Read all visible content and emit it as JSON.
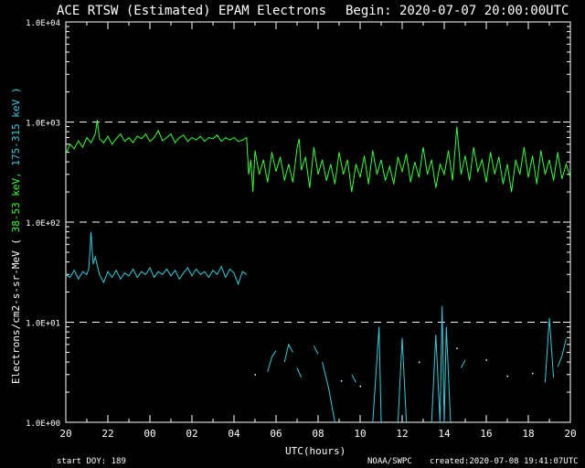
{
  "chart_data": {
    "type": "line",
    "title": "ACE RTSW (Estimated) EPAM Electrons",
    "begin_label": "Begin: 2020-07-07 20:00:00UTC",
    "ylabel": {
      "prefix": "Electrons/cm2-s-sr-MeV ( ",
      "series1": "38-53 keV,",
      "series2": "175-315 keV )"
    },
    "xlabel": "UTC(hours)",
    "x_ticks": [
      "20",
      "22",
      "00",
      "02",
      "04",
      "06",
      "08",
      "10",
      "12",
      "14",
      "16",
      "18",
      "20"
    ],
    "y_ticks": [
      "1.0E+00",
      "1.0E+01",
      "1.0E+02",
      "1.0E+03",
      "1.0E+04"
    ],
    "y_scale": "log",
    "ylim": [
      1,
      10000
    ],
    "xlim_hours": [
      0,
      24
    ],
    "dashed_lines": [
      10,
      100,
      1000
    ],
    "footer": {
      "start_doy": "start DOY:  189",
      "source": "NOAA/SWPC",
      "created": "created:2020-07-08 19:41:07UTC"
    },
    "series": [
      {
        "color": "#33ff33",
        "values": [
          [
            0.0,
            480
          ],
          [
            0.2,
            600
          ],
          [
            0.4,
            540
          ],
          [
            0.6,
            650
          ],
          [
            0.8,
            560
          ],
          [
            1.0,
            700
          ],
          [
            1.2,
            620
          ],
          [
            1.4,
            760
          ],
          [
            1.5,
            1050
          ],
          [
            1.6,
            680
          ],
          [
            1.8,
            620
          ],
          [
            2.0,
            720
          ],
          [
            2.2,
            600
          ],
          [
            2.4,
            680
          ],
          [
            2.6,
            760
          ],
          [
            2.8,
            640
          ],
          [
            3.0,
            700
          ],
          [
            3.2,
            620
          ],
          [
            3.4,
            720
          ],
          [
            3.6,
            680
          ],
          [
            3.8,
            760
          ],
          [
            4.0,
            640
          ],
          [
            4.2,
            700
          ],
          [
            4.4,
            820
          ],
          [
            4.6,
            650
          ],
          [
            4.8,
            700
          ],
          [
            5.0,
            760
          ],
          [
            5.2,
            620
          ],
          [
            5.4,
            700
          ],
          [
            5.6,
            740
          ],
          [
            5.8,
            640
          ],
          [
            6.0,
            700
          ],
          [
            6.2,
            660
          ],
          [
            6.4,
            720
          ],
          [
            6.6,
            640
          ],
          [
            6.8,
            700
          ],
          [
            7.0,
            680
          ],
          [
            7.2,
            740
          ],
          [
            7.4,
            640
          ],
          [
            7.6,
            700
          ],
          [
            7.8,
            660
          ],
          [
            8.0,
            700
          ],
          [
            8.2,
            640
          ],
          [
            8.4,
            660
          ],
          [
            8.6,
            700
          ],
          [
            8.7,
            300
          ],
          [
            8.8,
            420
          ],
          [
            8.9,
            200
          ],
          [
            9.0,
            520
          ],
          [
            9.2,
            300
          ],
          [
            9.4,
            420
          ],
          [
            9.6,
            250
          ],
          [
            9.8,
            500
          ],
          [
            10.0,
            320
          ],
          [
            10.2,
            450
          ],
          [
            10.4,
            260
          ],
          [
            10.6,
            380
          ],
          [
            10.8,
            250
          ],
          [
            11.0,
            550
          ],
          [
            11.1,
            680
          ],
          [
            11.2,
            330
          ],
          [
            11.4,
            450
          ],
          [
            11.6,
            220
          ],
          [
            11.8,
            560
          ],
          [
            12.0,
            300
          ],
          [
            12.2,
            420
          ],
          [
            12.4,
            260
          ],
          [
            12.6,
            380
          ],
          [
            12.8,
            240
          ],
          [
            13.0,
            500
          ],
          [
            13.2,
            300
          ],
          [
            13.4,
            420
          ],
          [
            13.6,
            200
          ],
          [
            13.8,
            380
          ],
          [
            14.0,
            280
          ],
          [
            14.2,
            460
          ],
          [
            14.4,
            240
          ],
          [
            14.6,
            520
          ],
          [
            14.8,
            300
          ],
          [
            15.0,
            420
          ],
          [
            15.2,
            260
          ],
          [
            15.4,
            360
          ],
          [
            15.6,
            240
          ],
          [
            15.8,
            450
          ],
          [
            16.0,
            320
          ],
          [
            16.2,
            480
          ],
          [
            16.4,
            250
          ],
          [
            16.6,
            400
          ],
          [
            16.8,
            280
          ],
          [
            17.0,
            560
          ],
          [
            17.2,
            300
          ],
          [
            17.4,
            420
          ],
          [
            17.6,
            220
          ],
          [
            17.8,
            380
          ],
          [
            18.0,
            300
          ],
          [
            18.2,
            520
          ],
          [
            18.4,
            260
          ],
          [
            18.6,
            900
          ],
          [
            18.8,
            300
          ],
          [
            19.0,
            460
          ],
          [
            19.2,
            260
          ],
          [
            19.4,
            560
          ],
          [
            19.6,
            320
          ],
          [
            19.8,
            420
          ],
          [
            20.0,
            250
          ],
          [
            20.2,
            500
          ],
          [
            20.4,
            300
          ],
          [
            20.6,
            450
          ],
          [
            20.8,
            240
          ],
          [
            21.0,
            380
          ],
          [
            21.2,
            200
          ],
          [
            21.4,
            420
          ],
          [
            21.6,
            300
          ],
          [
            21.8,
            560
          ],
          [
            22.0,
            280
          ],
          [
            22.2,
            460
          ],
          [
            22.4,
            240
          ],
          [
            22.6,
            520
          ],
          [
            22.8,
            300
          ],
          [
            23.0,
            420
          ],
          [
            23.2,
            260
          ],
          [
            23.4,
            500
          ],
          [
            23.6,
            270
          ],
          [
            23.8,
            380
          ],
          [
            24.0,
            280
          ]
        ]
      },
      {
        "color": "#33ccdd",
        "values": [
          [
            0.0,
            30
          ],
          [
            0.2,
            28
          ],
          [
            0.4,
            33
          ],
          [
            0.6,
            27
          ],
          [
            0.8,
            32
          ],
          [
            1.0,
            30
          ],
          [
            1.1,
            35
          ],
          [
            1.2,
            80
          ],
          [
            1.3,
            38
          ],
          [
            1.4,
            45
          ],
          [
            1.6,
            30
          ],
          [
            1.8,
            25
          ],
          [
            2.0,
            32
          ],
          [
            2.2,
            28
          ],
          [
            2.4,
            33
          ],
          [
            2.6,
            27
          ],
          [
            2.8,
            31
          ],
          [
            3.0,
            29
          ],
          [
            3.2,
            34
          ],
          [
            3.4,
            28
          ],
          [
            3.6,
            32
          ],
          [
            3.8,
            30
          ],
          [
            4.0,
            35
          ],
          [
            4.2,
            28
          ],
          [
            4.4,
            32
          ],
          [
            4.6,
            30
          ],
          [
            4.8,
            34
          ],
          [
            5.0,
            29
          ],
          [
            5.2,
            33
          ],
          [
            5.4,
            27
          ],
          [
            5.6,
            31
          ],
          [
            5.8,
            35
          ],
          [
            6.0,
            29
          ],
          [
            6.2,
            34
          ],
          [
            6.4,
            30
          ],
          [
            6.6,
            32
          ],
          [
            6.8,
            28
          ],
          [
            7.0,
            33
          ],
          [
            7.2,
            30
          ],
          [
            7.4,
            36
          ],
          [
            7.6,
            28
          ],
          [
            7.8,
            34
          ],
          [
            8.0,
            31
          ],
          [
            8.2,
            24
          ],
          [
            8.4,
            32
          ],
          [
            8.6,
            30
          ]
        ],
        "fragments": [
          [
            [
              9.6,
              3.2
            ],
            [
              9.8,
              4.5
            ],
            [
              10.0,
              5.2
            ]
          ],
          [
            [
              10.4,
              4.0
            ],
            [
              10.6,
              6.0
            ],
            [
              10.8,
              5.0
            ]
          ],
          [
            [
              11.0,
              3.5
            ],
            [
              11.2,
              2.8
            ]
          ],
          [
            [
              11.8,
              5.8
            ],
            [
              12.0,
              4.8
            ]
          ],
          [
            [
              12.2,
              4.0
            ],
            [
              12.5,
              2.2
            ],
            [
              12.8,
              1.0
            ]
          ],
          [
            [
              13.6,
              3.0
            ],
            [
              13.8,
              2.5
            ]
          ],
          [
            [
              14.6,
              1.0
            ],
            [
              14.9,
              9.0
            ],
            [
              15.0,
              1.0
            ]
          ],
          [
            [
              15.8,
              1.0
            ],
            [
              16.0,
              7.0
            ],
            [
              16.2,
              1.0
            ]
          ],
          [
            [
              17.4,
              1.0
            ],
            [
              17.6,
              7.5
            ],
            [
              17.8,
              1.0
            ],
            [
              17.9,
              14.5
            ],
            [
              18.0,
              1.0
            ],
            [
              18.1,
              9.0
            ],
            [
              18.3,
              1.0
            ]
          ],
          [
            [
              18.8,
              3.5
            ],
            [
              19.0,
              4.2
            ]
          ],
          [
            [
              22.8,
              2.5
            ],
            [
              23.0,
              11.0
            ],
            [
              23.2,
              2.8
            ]
          ],
          [
            [
              23.4,
              3.6
            ],
            [
              23.6,
              4.6
            ],
            [
              23.8,
              6.8
            ]
          ]
        ],
        "dots": [
          [
            9.0,
            3.0
          ],
          [
            13.1,
            2.6
          ],
          [
            14.0,
            2.3
          ],
          [
            16.8,
            4.0
          ],
          [
            18.6,
            5.5
          ],
          [
            20.0,
            4.2
          ],
          [
            21.0,
            2.9
          ],
          [
            22.2,
            3.1
          ]
        ]
      }
    ]
  }
}
